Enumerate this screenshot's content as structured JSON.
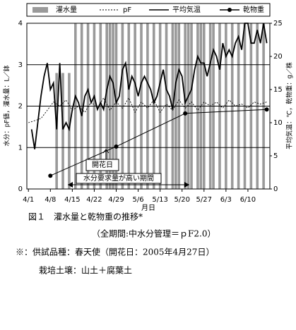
{
  "chart_data": {
    "type": "combo",
    "x_label": "月日",
    "y_label": "水分：pF値，灌水量：L／鉢",
    "y2_label": "平均気温：℃，乾物重：g／株",
    "xlim": [
      -0.5,
      77
    ],
    "xticks": [
      {
        "value": 0,
        "label": "4/1"
      },
      {
        "value": 7,
        "label": "4/8"
      },
      {
        "value": 14,
        "label": "4/15"
      },
      {
        "value": 21,
        "label": "4/22"
      },
      {
        "value": 28,
        "label": "4/29"
      },
      {
        "value": 35,
        "label": "5/6"
      },
      {
        "value": 42,
        "label": "5/13"
      },
      {
        "value": 49,
        "label": "5/20"
      },
      {
        "value": 56,
        "label": "5/27"
      },
      {
        "value": 63,
        "label": "6/3"
      },
      {
        "value": 70,
        "label": "6/10"
      }
    ],
    "ylim": [
      0,
      4
    ],
    "yticks": [
      0,
      1,
      2,
      3,
      4
    ],
    "y2lim": [
      0,
      25
    ],
    "y2ticks": [
      0,
      5,
      10,
      15,
      20,
      25
    ],
    "grid": true,
    "series": [
      {
        "name": "灌水量",
        "type": "bar",
        "color": "#9a9a9a",
        "x": [
          9,
          11,
          13,
          15,
          17,
          19,
          21,
          23,
          25,
          26,
          27,
          28,
          30,
          32,
          34,
          36,
          38,
          40,
          42,
          44,
          46,
          47,
          48,
          50,
          51,
          52,
          54,
          55,
          56,
          58,
          59,
          61,
          63,
          65,
          67,
          69,
          71,
          73,
          75
        ],
        "values": [
          2.8,
          2.8,
          2.8,
          4,
          4,
          4,
          4,
          4,
          4,
          4,
          4,
          4,
          4,
          4,
          4,
          4,
          4,
          4,
          4,
          4,
          4,
          4,
          4,
          4,
          4,
          4,
          4,
          4,
          4,
          4,
          4,
          4,
          4,
          4,
          4,
          4,
          4,
          4,
          4
        ]
      },
      {
        "name": "pF",
        "type": "line",
        "dash": true,
        "color": "#000000",
        "x": [
          0,
          2,
          4,
          6,
          8,
          10,
          12,
          14,
          16,
          18,
          20,
          22,
          24,
          26,
          28,
          30,
          32,
          34,
          36,
          38,
          40,
          42,
          44,
          46,
          48,
          50,
          52,
          54,
          56,
          58,
          60,
          62,
          64,
          66,
          68,
          70,
          72,
          74,
          76
        ],
        "values": [
          1.6,
          1.65,
          1.7,
          1.9,
          2.1,
          2.0,
          2.15,
          1.9,
          2.0,
          1.85,
          2.1,
          1.95,
          2.2,
          1.9,
          2.1,
          1.95,
          2.2,
          1.85,
          2.1,
          1.95,
          2.15,
          1.85,
          2.05,
          1.9,
          2.15,
          1.95,
          2.1,
          1.9,
          2.1,
          2.0,
          2.1,
          1.95,
          2.15,
          2.0,
          2.05,
          1.95,
          2.1,
          2.05,
          2.1
        ]
      },
      {
        "name": "平均気温",
        "type": "line",
        "axis": "y2",
        "color": "#000000",
        "x": [
          1,
          2,
          3,
          4,
          5,
          6,
          7,
          8,
          9,
          10,
          11,
          12,
          13,
          14,
          15,
          16,
          17,
          18,
          19,
          20,
          21,
          22,
          23,
          24,
          25,
          26,
          27,
          28,
          29,
          30,
          31,
          32,
          33,
          34,
          35,
          36,
          37,
          38,
          39,
          40,
          41,
          42,
          43,
          44,
          45,
          46,
          47,
          48,
          49,
          50,
          51,
          52,
          53,
          54,
          55,
          56,
          57,
          58,
          59,
          60,
          61,
          62,
          63,
          64,
          65,
          66,
          67,
          68,
          69,
          70,
          71,
          72,
          73,
          74,
          75,
          76
        ],
        "values": [
          9,
          6,
          10,
          14,
          17,
          19,
          15,
          16,
          9,
          19,
          9,
          10,
          9,
          12,
          14,
          13,
          11,
          14,
          15,
          13,
          14,
          12,
          13,
          12,
          15,
          17,
          16,
          13,
          14,
          18,
          19,
          15,
          17,
          16,
          14,
          16,
          17,
          16,
          15,
          13,
          14,
          16,
          18,
          15,
          14,
          12,
          16,
          18,
          17,
          13,
          14,
          15,
          18,
          20,
          19,
          19,
          17,
          19,
          21,
          20,
          18,
          22,
          20,
          21,
          20,
          22,
          23,
          21,
          25,
          25,
          22,
          22,
          24,
          22,
          25,
          22
        ]
      },
      {
        "name": "乾物重",
        "type": "line",
        "markers": true,
        "axis": "y2",
        "color": "#000000",
        "x": [
          7,
          28,
          50,
          76
        ],
        "values": [
          2,
          6.4,
          11.4,
          12
        ]
      }
    ],
    "annotations": [
      "開花日",
      "水分要求量が高い期間"
    ],
    "caption": [
      "図１　灌水量と乾物重の推移*",
      "（全期間:中水分管理＝ｐF2.0）",
      "※：供試品種：春天使（開花日：2005年4月27日）",
      "栽培土壌：山土＋腐葉土"
    ]
  }
}
